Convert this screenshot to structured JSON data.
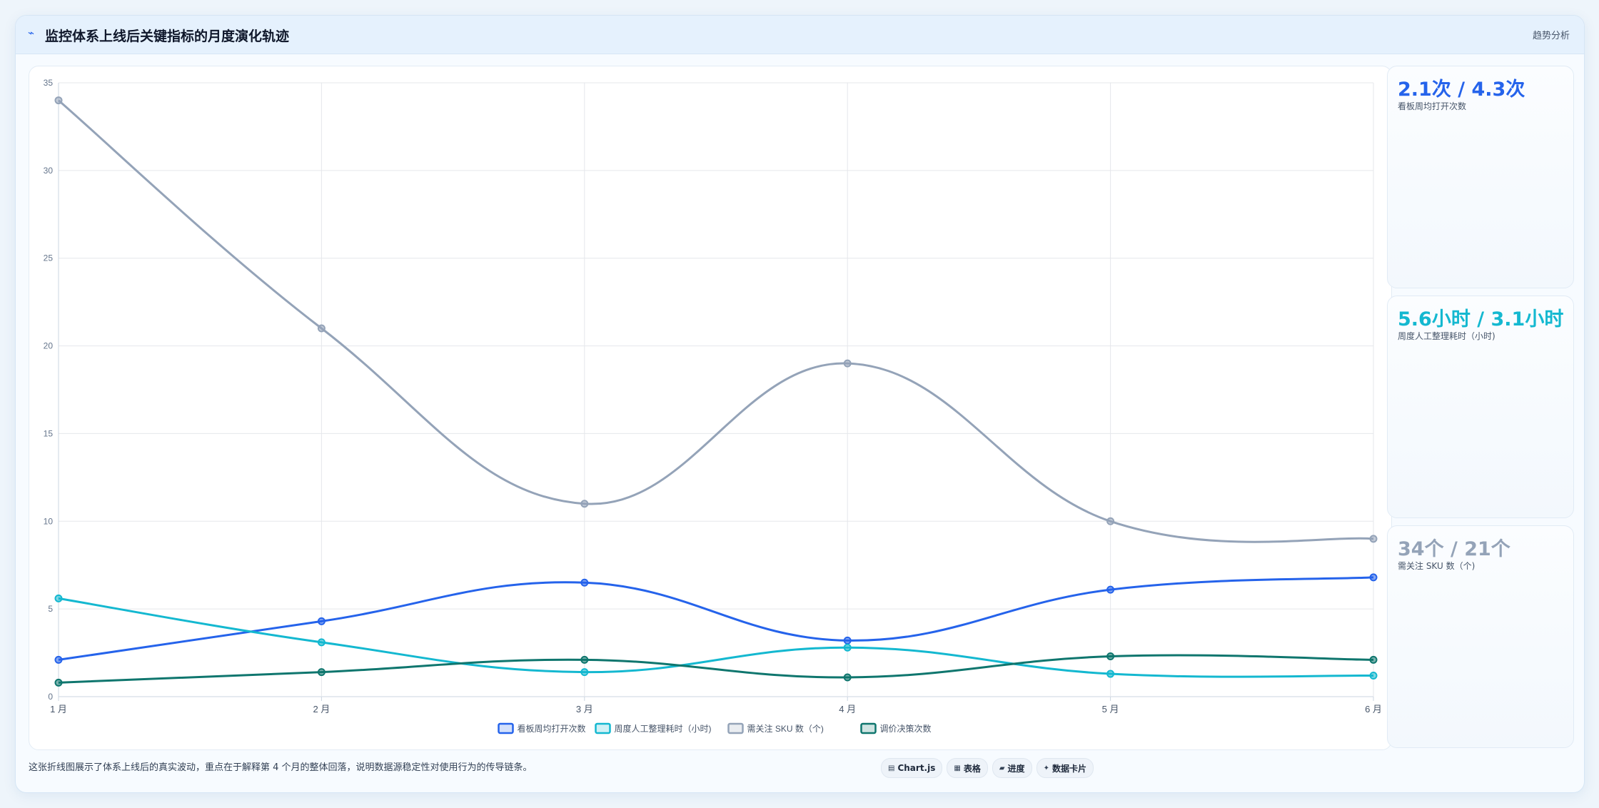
{
  "header": {
    "title": "监控体系上线后关键指标的月度演化轨迹",
    "action_label": "趋势分析"
  },
  "kpis": [
    {
      "value": "2.1次 / 4.3次",
      "label": "看板周均打开次数",
      "color": "#2563eb"
    },
    {
      "value": "5.6小时 / 3.1小时",
      "label": "周度人工整理耗时（小时)",
      "color": "#14b8d0"
    },
    {
      "value": "34个 / 21个",
      "label": "需关注 SKU 数（个)",
      "color": "#94a3b8"
    }
  ],
  "footer": {
    "note": "这张折线图展示了体系上线后的真实波动，重点在于解释第 4 个月的整体回落，说明数据源稳定性对使用行为的传导链条。",
    "chips": [
      {
        "icon": "chart-icon",
        "label": "Chart.js"
      },
      {
        "icon": "table-icon",
        "label": "表格"
      },
      {
        "icon": "progress-icon",
        "label": "进度"
      },
      {
        "icon": "card-icon",
        "label": "数据卡片"
      }
    ]
  },
  "chart_data": {
    "type": "line",
    "categories": [
      "1 月",
      "2 月",
      "3 月",
      "4 月",
      "5 月",
      "6 月"
    ],
    "ylim": [
      0,
      35
    ],
    "yticks": [
      0,
      5,
      10,
      15,
      20,
      25,
      30,
      35
    ],
    "grid": true,
    "legend_position": "bottom",
    "series": [
      {
        "name": "看板周均打开次数",
        "color": "#2563eb",
        "values": [
          2.1,
          4.3,
          6.5,
          3.2,
          6.1,
          6.8
        ]
      },
      {
        "name": "周度人工整理耗时（小时)",
        "color": "#14b8d0",
        "values": [
          5.6,
          3.1,
          1.4,
          2.8,
          1.3,
          1.2
        ]
      },
      {
        "name": "需关注 SKU 数（个)",
        "color": "#94a3b8",
        "values": [
          34,
          21,
          11,
          19,
          10,
          9
        ]
      },
      {
        "name": "调价决策次数",
        "color": "#0f766e",
        "values": [
          0.8,
          1.4,
          2.1,
          1.1,
          2.3,
          2.1
        ]
      }
    ]
  }
}
